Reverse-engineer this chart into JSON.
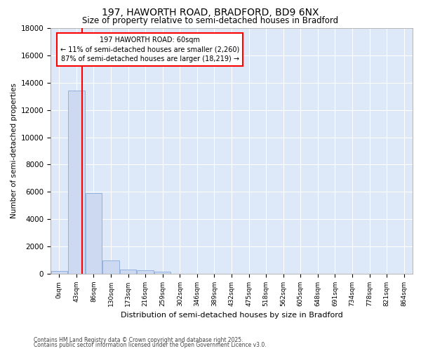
{
  "title_line1": "197, HAWORTH ROAD, BRADFORD, BD9 6NX",
  "title_line2": "Size of property relative to semi-detached houses in Bradford",
  "xlabel": "Distribution of semi-detached houses by size in Bradford",
  "ylabel": "Number of semi-detached properties",
  "annotation_title": "197 HAWORTH ROAD: 60sqm",
  "annotation_line2": "← 11% of semi-detached houses are smaller (2,260)",
  "annotation_line3": "87% of semi-detached houses are larger (18,219) →",
  "footer_line1": "Contains HM Land Registry data © Crown copyright and database right 2025.",
  "footer_line2": "Contains public sector information licensed under the Open Government Licence v3.0.",
  "bin_labels": [
    "0sqm",
    "43sqm",
    "86sqm",
    "130sqm",
    "173sqm",
    "216sqm",
    "259sqm",
    "302sqm",
    "346sqm",
    "389sqm",
    "432sqm",
    "475sqm",
    "518sqm",
    "562sqm",
    "605sqm",
    "648sqm",
    "691sqm",
    "734sqm",
    "778sqm",
    "821sqm",
    "864sqm"
  ],
  "bin_values": [
    200,
    13400,
    5900,
    1000,
    300,
    270,
    130,
    0,
    0,
    0,
    0,
    0,
    0,
    0,
    0,
    0,
    0,
    0,
    0,
    0,
    0
  ],
  "bar_color": "#ccd9f0",
  "bar_edge_color": "#88aadd",
  "vline_color": "red",
  "vline_position": 1.35,
  "ylim": [
    0,
    18000
  ],
  "yticks": [
    0,
    2000,
    4000,
    6000,
    8000,
    10000,
    12000,
    14000,
    16000,
    18000
  ],
  "plot_bg_color": "#dde8f8",
  "grid_color": "white"
}
